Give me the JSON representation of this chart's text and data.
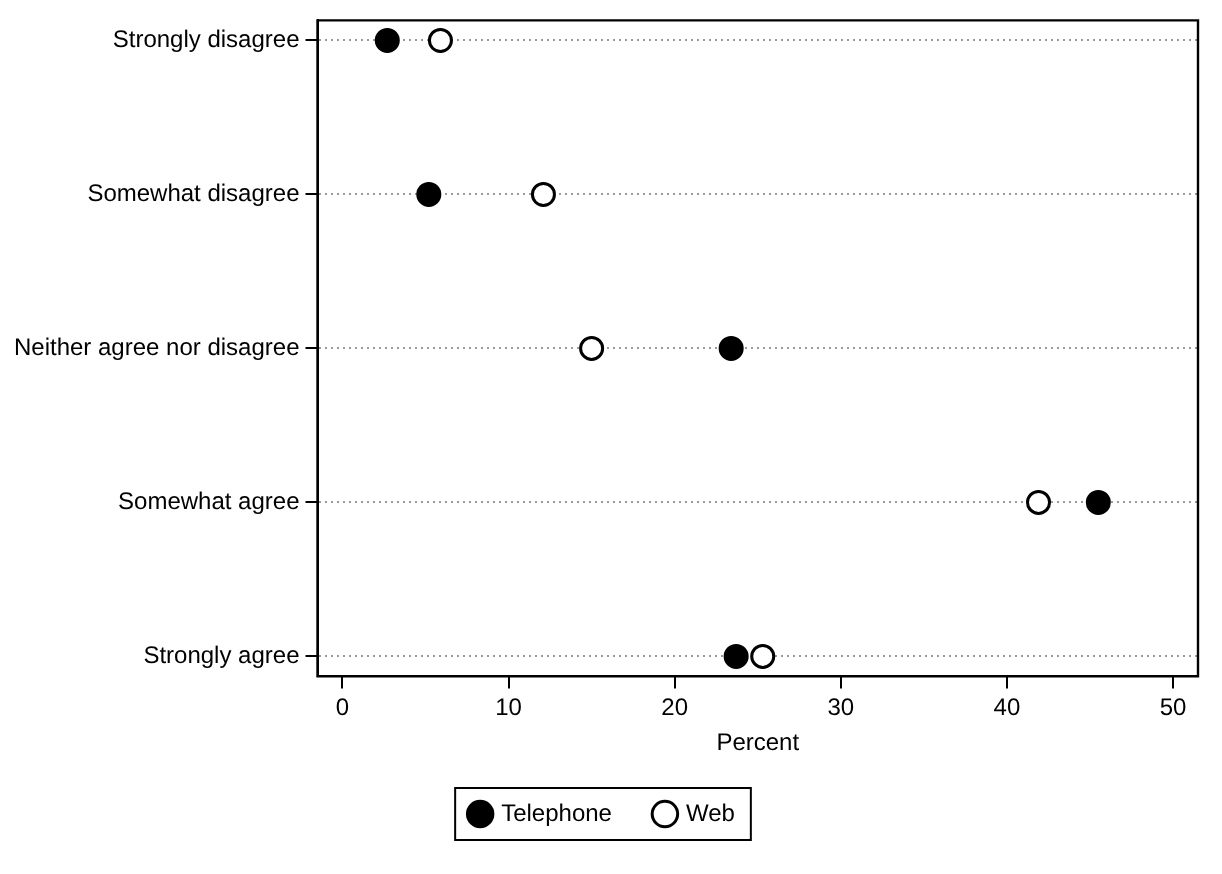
{
  "chart_data": {
    "type": "scatter",
    "orientation": "horizontal",
    "xlabel": "Percent",
    "categories": [
      "Strongly disagree",
      "Somewhat disagree",
      "Neither agree nor disagree",
      "Somewhat agree",
      "Strongly agree"
    ],
    "series": [
      {
        "name": "Telephone",
        "color": "#000000",
        "values": [
          2.7,
          5.2,
          23.4,
          45.5,
          23.7
        ]
      },
      {
        "name": "Web",
        "color": "#000000",
        "values": [
          5.9,
          12.1,
          15.0,
          41.9,
          25.3
        ]
      }
    ],
    "xlim": [
      -1.5,
      51.5
    ],
    "xticks": [
      0,
      10,
      20,
      30,
      40,
      50
    ],
    "grid": "y",
    "legend": "bottom",
    "marker": "circle"
  }
}
